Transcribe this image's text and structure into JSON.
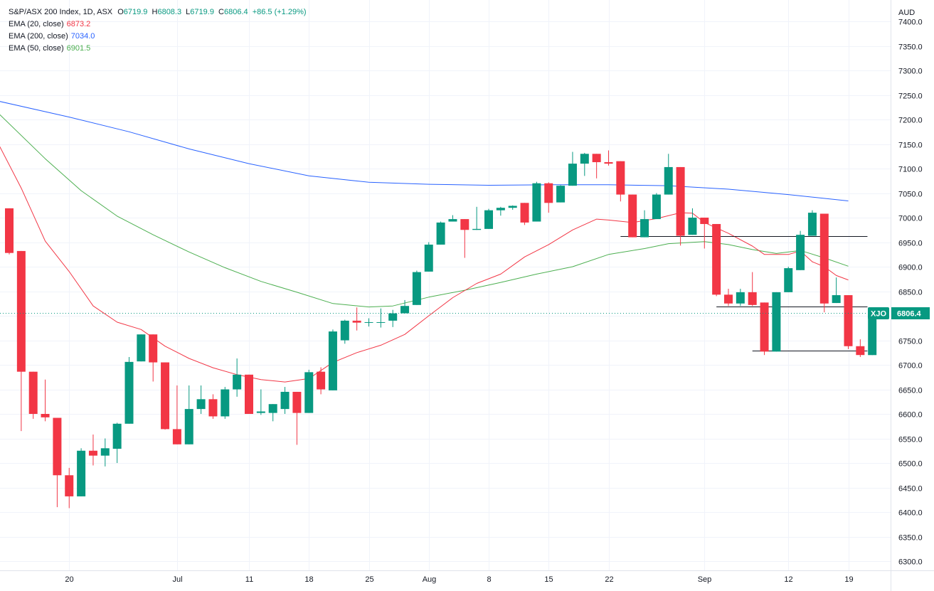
{
  "header": {
    "symbol_line": "S&P/ASX 200 Index, 1D, ASX",
    "ohlc": [
      {
        "label": "O",
        "value": "6719.9"
      },
      {
        "label": "H",
        "value": "6808.3"
      },
      {
        "label": "L",
        "value": "6719.9"
      },
      {
        "label": "C",
        "value": "6806.4"
      }
    ],
    "change": "+86.5 (+1.29%)",
    "currency": "AUD"
  },
  "indicators": [
    {
      "label": "EMA (20, close)",
      "value": "6873.2",
      "color": "#f23645"
    },
    {
      "label": "EMA (200, close)",
      "value": "7034.0",
      "color": "#2962ff"
    },
    {
      "label": "EMA (50, close)",
      "value": "6901.5",
      "color": "#4caf50"
    }
  ],
  "price_tag": {
    "ticker": "XJO",
    "value": "6806.4"
  },
  "colors": {
    "up": "#089981",
    "down": "#f23645",
    "ema20": "#f23645",
    "ema200": "#2962ff",
    "ema50": "#4caf50",
    "grid": "#f0f3fa"
  },
  "chart_data": {
    "type": "candlestick",
    "title": "S&P/ASX 200 Index, 1D, ASX",
    "y_axis": {
      "ticks": [
        6300,
        6350,
        6400,
        6450,
        6500,
        6550,
        6600,
        6650,
        6700,
        6750,
        6800,
        6850,
        6900,
        6950,
        7000,
        7050,
        7100,
        7150,
        7200,
        7250,
        7300,
        7350,
        7400
      ],
      "tick_labels": [
        "6300.0",
        "6350.0",
        "6400.0",
        "6450.0",
        "6500.0",
        "6550.0",
        "6600.0",
        "6650.0",
        "6700.0",
        "6750.0",
        "6800.0",
        "6850.0",
        "6900.0",
        "6950.0",
        "7000.0",
        "7050.0",
        "7100.0",
        "7150.0",
        "7200.0",
        "7250.0",
        "7300.0",
        "7350.0",
        "7400.0"
      ],
      "range": [
        6272,
        7418
      ]
    },
    "x_axis": {
      "tick_labels": [
        {
          "label": "20",
          "index": 5
        },
        {
          "label": "Jul",
          "index": 14
        },
        {
          "label": "11",
          "index": 20
        },
        {
          "label": "18",
          "index": 25
        },
        {
          "label": "25",
          "index": 30
        },
        {
          "label": "Aug",
          "index": 35
        },
        {
          "label": "8",
          "index": 40
        },
        {
          "label": "15",
          "index": 45
        },
        {
          "label": "22",
          "index": 50
        },
        {
          "label": "Sep",
          "index": 58
        },
        {
          "label": "12",
          "index": 65
        },
        {
          "label": "19",
          "index": 70
        }
      ]
    },
    "candles": [
      {
        "o": 7019,
        "h": 7019,
        "l": 6925,
        "c": 6928
      },
      {
        "o": 6932,
        "h": 6932,
        "l": 6565,
        "c": 6686
      },
      {
        "o": 6686,
        "h": 6686,
        "l": 6590,
        "c": 6600
      },
      {
        "o": 6600,
        "h": 6670,
        "l": 6585,
        "c": 6593
      },
      {
        "o": 6592,
        "h": 6592,
        "l": 6410,
        "c": 6475
      },
      {
        "o": 6475,
        "h": 6490,
        "l": 6408,
        "c": 6432
      },
      {
        "o": 6432,
        "h": 6530,
        "l": 6432,
        "c": 6525
      },
      {
        "o": 6525,
        "h": 6558,
        "l": 6495,
        "c": 6515
      },
      {
        "o": 6515,
        "h": 6550,
        "l": 6493,
        "c": 6530
      },
      {
        "o": 6529,
        "h": 6582,
        "l": 6500,
        "c": 6580
      },
      {
        "o": 6580,
        "h": 6716,
        "l": 6580,
        "c": 6706
      },
      {
        "o": 6707,
        "h": 6762,
        "l": 6707,
        "c": 6762
      },
      {
        "o": 6762,
        "h": 6762,
        "l": 6666,
        "c": 6705
      },
      {
        "o": 6705,
        "h": 6705,
        "l": 6568,
        "c": 6569
      },
      {
        "o": 6569,
        "h": 6658,
        "l": 6538,
        "c": 6538
      },
      {
        "o": 6538,
        "h": 6658,
        "l": 6538,
        "c": 6610
      },
      {
        "o": 6610,
        "h": 6658,
        "l": 6600,
        "c": 6630
      },
      {
        "o": 6630,
        "h": 6640,
        "l": 6590,
        "c": 6595
      },
      {
        "o": 6595,
        "h": 6655,
        "l": 6590,
        "c": 6650
      },
      {
        "o": 6650,
        "h": 6713,
        "l": 6635,
        "c": 6680
      },
      {
        "o": 6680,
        "h": 6680,
        "l": 6600,
        "c": 6600
      },
      {
        "o": 6602,
        "h": 6650,
        "l": 6598,
        "c": 6605
      },
      {
        "o": 6602,
        "h": 6620,
        "l": 6585,
        "c": 6620
      },
      {
        "o": 6610,
        "h": 6655,
        "l": 6600,
        "c": 6645
      },
      {
        "o": 6645,
        "h": 6645,
        "l": 6537,
        "c": 6602
      },
      {
        "o": 6602,
        "h": 6690,
        "l": 6602,
        "c": 6685
      },
      {
        "o": 6686,
        "h": 6695,
        "l": 6640,
        "c": 6650
      },
      {
        "o": 6648,
        "h": 6772,
        "l": 6648,
        "c": 6768
      },
      {
        "o": 6750,
        "h": 6792,
        "l": 6743,
        "c": 6790
      },
      {
        "o": 6790,
        "h": 6817,
        "l": 6770,
        "c": 6786
      },
      {
        "o": 6787,
        "h": 6795,
        "l": 6778,
        "c": 6787
      },
      {
        "o": 6787,
        "h": 6815,
        "l": 6776,
        "c": 6787
      },
      {
        "o": 6790,
        "h": 6812,
        "l": 6777,
        "c": 6805
      },
      {
        "o": 6805,
        "h": 6832,
        "l": 6805,
        "c": 6820
      },
      {
        "o": 6822,
        "h": 6892,
        "l": 6822,
        "c": 6889
      },
      {
        "o": 6890,
        "h": 6950,
        "l": 6890,
        "c": 6945
      },
      {
        "o": 6945,
        "h": 6992,
        "l": 6945,
        "c": 6990
      },
      {
        "o": 6992,
        "h": 7005,
        "l": 6992,
        "c": 6997
      },
      {
        "o": 6997,
        "h": 6997,
        "l": 6918,
        "c": 6975
      },
      {
        "o": 6975,
        "h": 7022,
        "l": 6975,
        "c": 6977
      },
      {
        "o": 6977,
        "h": 7018,
        "l": 6977,
        "c": 7015
      },
      {
        "o": 7015,
        "h": 7022,
        "l": 7004,
        "c": 7020
      },
      {
        "o": 7020,
        "h": 7025,
        "l": 7016,
        "c": 7024
      },
      {
        "o": 7030,
        "h": 7030,
        "l": 6985,
        "c": 6990
      },
      {
        "o": 6992,
        "h": 7073,
        "l": 6992,
        "c": 7070
      },
      {
        "o": 7070,
        "h": 7072,
        "l": 7010,
        "c": 7030
      },
      {
        "o": 7031,
        "h": 7066,
        "l": 7031,
        "c": 7065
      },
      {
        "o": 7065,
        "h": 7134,
        "l": 7065,
        "c": 7110
      },
      {
        "o": 7110,
        "h": 7132,
        "l": 7085,
        "c": 7130
      },
      {
        "o": 7130,
        "h": 7130,
        "l": 7080,
        "c": 7113
      },
      {
        "o": 7113,
        "h": 7137,
        "l": 7106,
        "c": 7110
      },
      {
        "o": 7115,
        "h": 7115,
        "l": 7033,
        "c": 7047
      },
      {
        "o": 7047,
        "h": 7047,
        "l": 6960,
        "c": 6960
      },
      {
        "o": 6960,
        "h": 7015,
        "l": 6960,
        "c": 6997
      },
      {
        "o": 6997,
        "h": 7050,
        "l": 6997,
        "c": 7047
      },
      {
        "o": 7047,
        "h": 7130,
        "l": 7047,
        "c": 7103
      },
      {
        "o": 7103,
        "h": 7103,
        "l": 6943,
        "c": 6963
      },
      {
        "o": 6965,
        "h": 7019,
        "l": 6965,
        "c": 7000
      },
      {
        "o": 7000,
        "h": 7000,
        "l": 6937,
        "c": 6987
      },
      {
        "o": 6987,
        "h": 6987,
        "l": 6840,
        "c": 6843
      },
      {
        "o": 6843,
        "h": 6855,
        "l": 6820,
        "c": 6825
      },
      {
        "o": 6825,
        "h": 6855,
        "l": 6820,
        "c": 6848
      },
      {
        "o": 6848,
        "h": 6889,
        "l": 6820,
        "c": 6822
      },
      {
        "o": 6827,
        "h": 6827,
        "l": 6720,
        "c": 6727
      },
      {
        "o": 6727,
        "h": 6848,
        "l": 6727,
        "c": 6848
      },
      {
        "o": 6848,
        "h": 6900,
        "l": 6848,
        "c": 6897
      },
      {
        "o": 6893,
        "h": 6973,
        "l": 6893,
        "c": 6965
      },
      {
        "o": 6963,
        "h": 7015,
        "l": 6963,
        "c": 7010
      },
      {
        "o": 7008,
        "h": 7008,
        "l": 6807,
        "c": 6825
      },
      {
        "o": 6826,
        "h": 6878,
        "l": 6826,
        "c": 6842
      },
      {
        "o": 6842,
        "h": 6842,
        "l": 6732,
        "c": 6738
      },
      {
        "o": 6738,
        "h": 6752,
        "l": 6716,
        "c": 6720
      },
      {
        "o": 6719.9,
        "h": 6808.3,
        "l": 6719.9,
        "c": 6806.4
      }
    ],
    "ema200": [
      [
        -1,
        7238
      ],
      [
        5,
        7205
      ],
      [
        10,
        7175
      ],
      [
        15,
        7140
      ],
      [
        20,
        7110
      ],
      [
        25,
        7085
      ],
      [
        30,
        7072
      ],
      [
        35,
        7068
      ],
      [
        40,
        7066
      ],
      [
        45,
        7067
      ],
      [
        50,
        7067
      ],
      [
        55,
        7065
      ],
      [
        60,
        7058
      ],
      [
        65,
        7047
      ],
      [
        70,
        7034
      ]
    ],
    "ema50": [
      [
        -1,
        7215
      ],
      [
        3,
        7120
      ],
      [
        6,
        7055
      ],
      [
        9,
        7003
      ],
      [
        12,
        6965
      ],
      [
        15,
        6930
      ],
      [
        18,
        6898
      ],
      [
        21,
        6870
      ],
      [
        24,
        6848
      ],
      [
        27,
        6825
      ],
      [
        30,
        6818
      ],
      [
        32,
        6820
      ],
      [
        35,
        6838
      ],
      [
        38,
        6852
      ],
      [
        41,
        6868
      ],
      [
        44,
        6885
      ],
      [
        47,
        6900
      ],
      [
        50,
        6925
      ],
      [
        53,
        6937
      ],
      [
        55,
        6947
      ],
      [
        58,
        6951
      ],
      [
        60,
        6945
      ],
      [
        62,
        6935
      ],
      [
        64,
        6927
      ],
      [
        66,
        6933
      ],
      [
        68,
        6918
      ],
      [
        70,
        6901
      ]
    ],
    "ema20": [
      [
        -1,
        7155
      ],
      [
        1,
        7060
      ],
      [
        3,
        6952
      ],
      [
        5,
        6890
      ],
      [
        7,
        6820
      ],
      [
        9,
        6787
      ],
      [
        11,
        6772
      ],
      [
        13,
        6738
      ],
      [
        15,
        6713
      ],
      [
        17,
        6694
      ],
      [
        19,
        6680
      ],
      [
        21,
        6670
      ],
      [
        23,
        6665
      ],
      [
        25,
        6672
      ],
      [
        27,
        6705
      ],
      [
        29,
        6725
      ],
      [
        31,
        6740
      ],
      [
        33,
        6762
      ],
      [
        35,
        6800
      ],
      [
        37,
        6837
      ],
      [
        39,
        6866
      ],
      [
        41,
        6885
      ],
      [
        43,
        6920
      ],
      [
        45,
        6945
      ],
      [
        47,
        6975
      ],
      [
        49,
        6997
      ],
      [
        50,
        6995
      ],
      [
        52,
        6990
      ],
      [
        54,
        6998
      ],
      [
        56,
        7010
      ],
      [
        57,
        7009
      ],
      [
        58,
        6990
      ],
      [
        60,
        6968
      ],
      [
        62,
        6942
      ],
      [
        63,
        6925
      ],
      [
        65,
        6925
      ],
      [
        66,
        6932
      ],
      [
        67,
        6910
      ],
      [
        68,
        6900
      ],
      [
        69,
        6882
      ],
      [
        70,
        6873
      ]
    ],
    "horizontal_lines": [
      {
        "y": 6962,
        "from": 51,
        "to": 71.6
      },
      {
        "y": 6819,
        "from": 59,
        "to": 71.6
      },
      {
        "y": 6729,
        "from": 62,
        "to": 71.6
      }
    ],
    "last_price": 6806.4
  }
}
